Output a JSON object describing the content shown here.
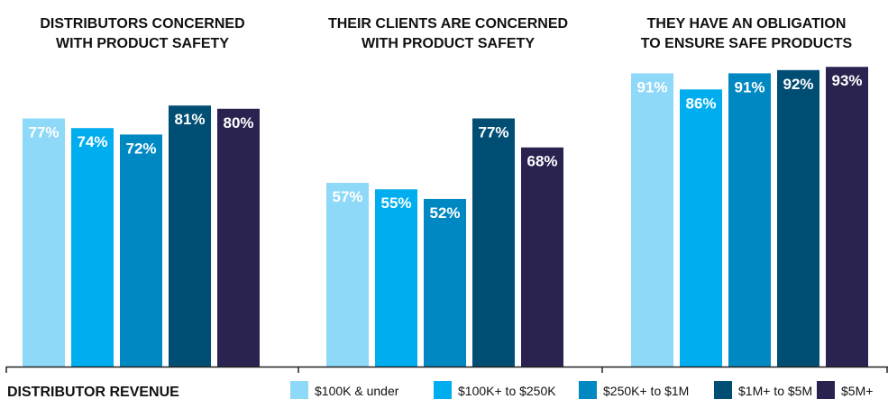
{
  "chart_data": {
    "type": "bar",
    "panels": [
      {
        "title_lines": [
          "DISTRIBUTORS CONCERNED",
          "WITH PRODUCT SAFETY"
        ],
        "values": [
          77,
          74,
          72,
          81,
          80
        ],
        "labels": [
          "77%",
          "74%",
          "72%",
          "81%",
          "80%"
        ]
      },
      {
        "title_lines": [
          "THEIR CLIENTS ARE CONCERNED",
          "WITH PRODUCT SAFETY"
        ],
        "values": [
          57,
          55,
          52,
          77,
          68
        ],
        "labels": [
          "57%",
          "55%",
          "52%",
          "77%",
          "68%"
        ]
      },
      {
        "title_lines": [
          "THEY HAVE AN OBLIGATION",
          "TO ENSURE SAFE PRODUCTS"
        ],
        "values": [
          91,
          86,
          91,
          92,
          93
        ],
        "labels": [
          "91%",
          "86%",
          "91%",
          "92%",
          "93%"
        ]
      }
    ],
    "series": [
      {
        "name": "$100K & under",
        "color": "#8ed8f8"
      },
      {
        "name": "$100K+ to $250K",
        "color": "#00aeef"
      },
      {
        "name": "$250K+ to $1M",
        "color": "#0088c2"
      },
      {
        "name": "$1M+ to $5M",
        "color": "#004e73"
      },
      {
        "name": "$5M+",
        "color": "#2a2350"
      }
    ],
    "ylim": [
      0,
      100
    ],
    "legend_title": "DISTRIBUTOR REVENUE",
    "legend_position": "bottom",
    "grid": false
  }
}
